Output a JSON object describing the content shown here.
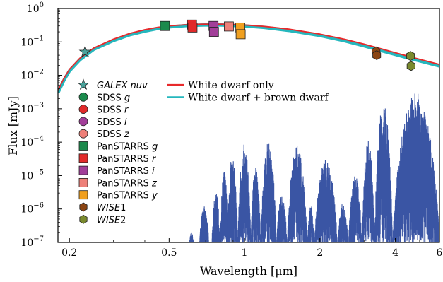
{
  "chart_data": {
    "type": "scatter",
    "title": "",
    "xlabel": "Wavelength [μm]",
    "ylabel": "Flux [mJy]",
    "xscale": "log",
    "yscale": "log",
    "xlim": [
      0.18,
      6.0
    ],
    "ylim": [
      1e-07,
      1.0
    ],
    "grid": false,
    "x_ticks": [
      {
        "value": 0.2,
        "label": "0.2"
      },
      {
        "value": 0.5,
        "label": "0.5"
      },
      {
        "value": 1.0,
        "label": "1"
      },
      {
        "value": 2.0,
        "label": "2"
      },
      {
        "value": 4.0,
        "label": "4"
      },
      {
        "value": 6.0,
        "label": "6"
      }
    ],
    "y_ticks": [
      {
        "value": 1e-07,
        "base": "10",
        "exp": "−7"
      },
      {
        "value": 1e-06,
        "base": "10",
        "exp": "−6"
      },
      {
        "value": 1e-05,
        "base": "10",
        "exp": "−5"
      },
      {
        "value": 0.0001,
        "base": "10",
        "exp": "−4"
      },
      {
        "value": 0.001,
        "base": "10",
        "exp": "−3"
      },
      {
        "value": 0.01,
        "base": "10",
        "exp": "−2"
      },
      {
        "value": 0.1,
        "base": "10",
        "exp": "−1"
      },
      {
        "value": 1.0,
        "base": "10",
        "exp": "0"
      }
    ],
    "model_lines": [
      {
        "name": "White dwarf only",
        "color": "#e8292b",
        "x": [
          0.18,
          0.19,
          0.2,
          0.22,
          0.25,
          0.3,
          0.35,
          0.4,
          0.45,
          0.5,
          0.6,
          0.7,
          0.8,
          1.0,
          1.2,
          1.5,
          2.0,
          2.5,
          3.0,
          3.5,
          4.0,
          4.5,
          5.0,
          6.0
        ],
        "y": [
          0.0035,
          0.008,
          0.015,
          0.032,
          0.065,
          0.12,
          0.18,
          0.23,
          0.27,
          0.3,
          0.33,
          0.34,
          0.34,
          0.32,
          0.29,
          0.24,
          0.17,
          0.12,
          0.085,
          0.062,
          0.047,
          0.037,
          0.03,
          0.021
        ]
      },
      {
        "name": "White dwarf + brown dwarf",
        "color": "#25b7bd",
        "x": [
          0.18,
          0.19,
          0.2,
          0.22,
          0.25,
          0.3,
          0.35,
          0.4,
          0.45,
          0.5,
          0.6,
          0.7,
          0.8,
          1.0,
          1.2,
          1.5,
          2.0,
          2.5,
          3.0,
          3.5,
          4.0,
          4.5,
          5.0,
          6.0
        ],
        "y": [
          0.003,
          0.007,
          0.0135,
          0.029,
          0.06,
          0.11,
          0.165,
          0.21,
          0.25,
          0.28,
          0.31,
          0.32,
          0.32,
          0.3,
          0.27,
          0.22,
          0.155,
          0.108,
          0.076,
          0.055,
          0.042,
          0.033,
          0.027,
          0.019
        ]
      }
    ],
    "brown_dwarf_spectrum": {
      "name": "brown dwarf spectrum",
      "color": "#3a55a4",
      "bands": [
        {
          "x0": 0.6,
          "x1": 0.63,
          "peak": 2e-07
        },
        {
          "x0": 0.66,
          "x1": 0.72,
          "peak": 1.2e-06
        },
        {
          "x0": 0.7,
          "x1": 0.72,
          "peak": 5e-07
        },
        {
          "x0": 0.74,
          "x1": 0.8,
          "peak": 3e-06
        },
        {
          "x0": 0.8,
          "x1": 0.86,
          "peak": 1.5e-05
        },
        {
          "x0": 0.85,
          "x1": 0.94,
          "peak": 4e-05
        },
        {
          "x0": 0.94,
          "x1": 1.06,
          "peak": 9e-05
        },
        {
          "x0": 1.06,
          "x1": 1.16,
          "peak": 2e-05
        },
        {
          "x0": 1.16,
          "x1": 1.34,
          "peak": 0.0001
        },
        {
          "x0": 1.34,
          "x1": 1.48,
          "peak": 2.5e-06
        },
        {
          "x0": 1.48,
          "x1": 1.78,
          "peak": 8e-05
        },
        {
          "x0": 1.78,
          "x1": 1.9,
          "peak": 1.5e-06
        },
        {
          "x0": 1.9,
          "x1": 2.35,
          "peak": 3e-05
        },
        {
          "x0": 2.35,
          "x1": 2.6,
          "peak": 1.5e-06
        },
        {
          "x0": 2.6,
          "x1": 2.95,
          "peak": 1e-05
        },
        {
          "x0": 2.95,
          "x1": 3.3,
          "peak": 0.00012
        },
        {
          "x0": 3.3,
          "x1": 3.9,
          "peak": 0.0015
        },
        {
          "x0": 3.9,
          "x1": 6.0,
          "peak": 0.003
        }
      ]
    },
    "photometry": [
      {
        "name": "GALEX nuv",
        "italic": true,
        "marker": "star",
        "color": "#4aa39c",
        "points": [
          {
            "x": 0.231,
            "y": 0.05
          }
        ]
      },
      {
        "name": "SDSS g",
        "italic_suffix": "g",
        "prefix": "SDSS ",
        "marker": "circle",
        "color": "#1b8a4c",
        "points": []
      },
      {
        "name": "SDSS r",
        "italic_suffix": "r",
        "prefix": "SDSS ",
        "marker": "circle",
        "color": "#e12a2a",
        "points": []
      },
      {
        "name": "SDSS i",
        "italic_suffix": "i",
        "prefix": "SDSS ",
        "marker": "circle",
        "color": "#a23e99",
        "points": []
      },
      {
        "name": "SDSS z",
        "italic_suffix": "z",
        "prefix": "SDSS ",
        "marker": "circle",
        "color": "#ee8079",
        "points": []
      },
      {
        "name": "PanSTARRS g",
        "italic_suffix": "g",
        "prefix": "PanSTARRS ",
        "marker": "square",
        "color": "#1b8a4c",
        "points": [
          {
            "x": 0.481,
            "y": 0.3
          }
        ]
      },
      {
        "name": "PanSTARRS r",
        "italic_suffix": "r",
        "prefix": "PanSTARRS ",
        "marker": "square",
        "color": "#e12a2a",
        "points": [
          {
            "x": 0.617,
            "y": 0.33
          },
          {
            "x": 0.62,
            "y": 0.27
          }
        ]
      },
      {
        "name": "PanSTARRS i",
        "italic_suffix": "i",
        "prefix": "PanSTARRS ",
        "marker": "square",
        "color": "#a23e99",
        "points": [
          {
            "x": 0.752,
            "y": 0.3
          },
          {
            "x": 0.755,
            "y": 0.2
          }
        ]
      },
      {
        "name": "PanSTARRS z",
        "italic_suffix": "z",
        "prefix": "PanSTARRS ",
        "marker": "square",
        "color": "#ee8079",
        "points": [
          {
            "x": 0.866,
            "y": 0.29
          }
        ]
      },
      {
        "name": "PanSTARRS y",
        "italic_suffix": "y",
        "prefix": "PanSTARRS ",
        "marker": "square",
        "color": "#f0a020",
        "points": [
          {
            "x": 0.962,
            "y": 0.27
          },
          {
            "x": 0.965,
            "y": 0.17
          }
        ]
      },
      {
        "name": "WISE1",
        "italic_part": "WISE",
        "plain_part": "1",
        "marker": "hexagon",
        "color": "#8b4513",
        "points": [
          {
            "x": 3.35,
            "y": 0.052
          },
          {
            "x": 3.37,
            "y": 0.04
          }
        ]
      },
      {
        "name": "WISE2",
        "italic_part": "WISE",
        "plain_part": "2",
        "marker": "hexagon",
        "color": "#7a8a2e",
        "points": [
          {
            "x": 4.6,
            "y": 0.038
          },
          {
            "x": 4.62,
            "y": 0.019
          }
        ]
      }
    ],
    "legend_lines": [
      {
        "label": "White dwarf only",
        "color": "#e8292b"
      },
      {
        "label": "White dwarf + brown dwarf",
        "color": "#25b7bd"
      }
    ]
  }
}
